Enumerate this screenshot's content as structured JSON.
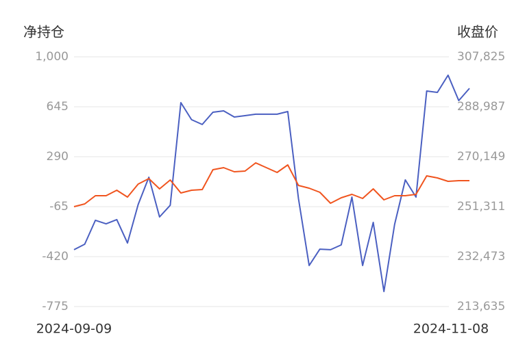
{
  "chart_data": {
    "type": "line",
    "y_label": "净持仓",
    "y2_label": "收盘价",
    "categories": [
      "2024-09-09",
      null,
      null,
      null,
      null,
      null,
      null,
      null,
      null,
      null,
      null,
      null,
      null,
      null,
      null,
      null,
      null,
      null,
      null,
      null,
      null,
      null,
      null,
      null,
      null,
      null,
      null,
      null,
      null,
      null,
      null,
      null,
      null,
      null,
      null,
      null,
      null,
      "2024-11-08"
    ],
    "ylim": [
      -775,
      1000
    ],
    "yticks": [
      {
        "value": 1000,
        "label": "1,000"
      },
      645,
      290,
      -65,
      -420,
      -775
    ],
    "y2lim": [
      213635,
      307825
    ],
    "y2ticks": [
      {
        "value": 307825,
        "label": "307,825"
      },
      {
        "value": 288987,
        "label": "288,987"
      },
      {
        "value": 270149,
        "label": "270,149"
      },
      {
        "value": 251311,
        "label": "251,311"
      },
      {
        "value": 232473,
        "label": "232,473"
      },
      {
        "value": 213635,
        "label": "213,635"
      }
    ],
    "grid": true,
    "series": [
      {
        "color": "#4a5fc1",
        "values": [
          -371,
          -332,
          -162,
          -187,
          -157,
          -323,
          -50,
          144,
          -138,
          -55,
          674,
          553,
          519,
          606,
          616,
          572,
          582,
          592,
          592,
          592,
          611,
          -7,
          -483,
          -367,
          -371,
          -337,
          3,
          -483,
          -177,
          -668,
          -191,
          125,
          3,
          757,
          747,
          869,
          689,
          776
        ]
      },
      {
        "color": "#f0541e",
        "axis": "y2",
        "values": [
          251310,
          252340,
          255440,
          255440,
          257510,
          254930,
          259830,
          261890,
          258020,
          261380,
          256470,
          257510,
          257760,
          265250,
          266020,
          264470,
          264730,
          267830,
          266020,
          264220,
          267050,
          259310,
          258280,
          256730,
          252600,
          254670,
          255960,
          254410,
          258020,
          253890,
          255440,
          255440,
          255960,
          262920,
          262150,
          260860,
          261120,
          261120
        ]
      }
    ]
  }
}
